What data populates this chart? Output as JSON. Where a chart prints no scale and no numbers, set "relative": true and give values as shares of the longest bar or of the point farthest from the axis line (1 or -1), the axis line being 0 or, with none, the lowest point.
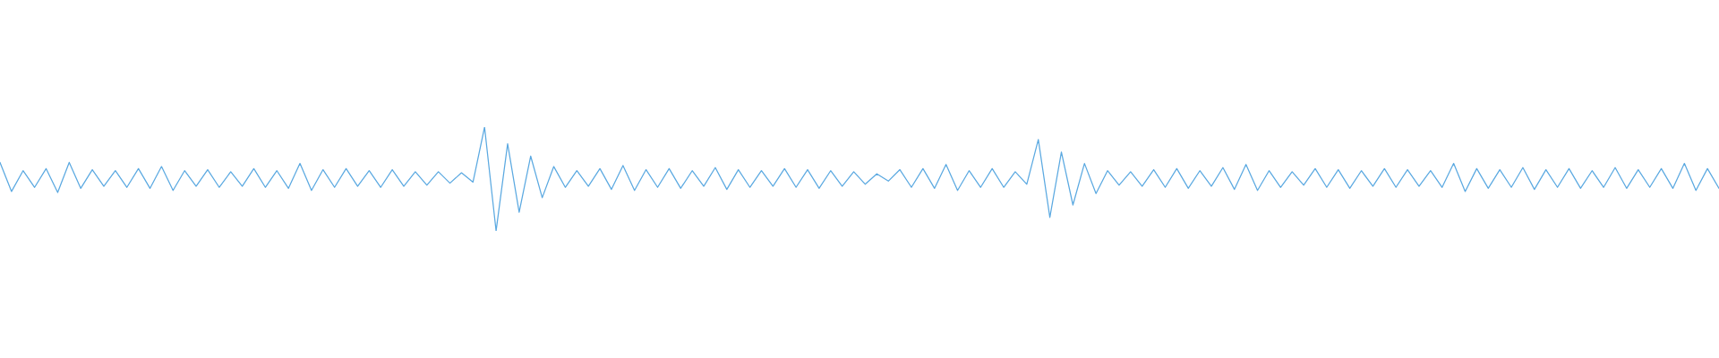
{
  "chart_data": {
    "type": "line",
    "relative": true,
    "categories": [
      null,
      null,
      null,
      null,
      null,
      null,
      null,
      null,
      null,
      null,
      null,
      null,
      null,
      null,
      null,
      null,
      null,
      null,
      null,
      null,
      null,
      null,
      null,
      null,
      null,
      null,
      null,
      null,
      null,
      null,
      null,
      null,
      null,
      null,
      null,
      null,
      null,
      null,
      null,
      null,
      null,
      null,
      null,
      null,
      null,
      null,
      null,
      null,
      null,
      null,
      null,
      null,
      null,
      null,
      null,
      null,
      null,
      null,
      null,
      null,
      null,
      null,
      null,
      null,
      null,
      null,
      null,
      null,
      null,
      null,
      null,
      null,
      null,
      null,
      null,
      null,
      null,
      null,
      null,
      null,
      null,
      null,
      null,
      null,
      null,
      null,
      null,
      null,
      null,
      null,
      null,
      null,
      null,
      null,
      null,
      null,
      null,
      null,
      null,
      null,
      null,
      null,
      null,
      null,
      null,
      null,
      null,
      null,
      null,
      null,
      null,
      null,
      null,
      null,
      null,
      null,
      null,
      null,
      null,
      null,
      null,
      null,
      null,
      null,
      null,
      null,
      null,
      null,
      null,
      null,
      null,
      null,
      null,
      null,
      null,
      null,
      null,
      null,
      null,
      null,
      null,
      null,
      null,
      null,
      null,
      null,
      null,
      null,
      null,
      null
    ],
    "series": [
      {
        "color": "#5ba9e1",
        "values": [
          0.66,
          0.38,
          0.58,
          0.42,
          0.6,
          0.37,
          0.66,
          0.41,
          0.59,
          0.43,
          0.58,
          0.42,
          0.6,
          0.41,
          0.62,
          0.39,
          0.58,
          0.43,
          0.59,
          0.42,
          0.57,
          0.43,
          0.6,
          0.42,
          0.58,
          0.41,
          0.65,
          0.39,
          0.59,
          0.42,
          0.6,
          0.43,
          0.58,
          0.42,
          0.59,
          0.43,
          0.57,
          0.44,
          0.57,
          0.46,
          0.56,
          0.47,
          1,
          0,
          0.84,
          0.18,
          0.72,
          0.32,
          0.62,
          0.42,
          0.58,
          0.43,
          0.6,
          0.4,
          0.63,
          0.39,
          0.59,
          0.42,
          0.6,
          0.41,
          0.58,
          0.43,
          0.61,
          0.4,
          0.59,
          0.42,
          0.58,
          0.43,
          0.6,
          0.42,
          0.59,
          0.41,
          0.58,
          0.43,
          0.57,
          0.45,
          0.55,
          0.48,
          0.59,
          0.42,
          0.6,
          0.41,
          0.64,
          0.39,
          0.58,
          0.42,
          0.6,
          0.42,
          0.57,
          0.45,
          0.88,
          0.13,
          0.76,
          0.25,
          0.65,
          0.36,
          0.58,
          0.44,
          0.57,
          0.43,
          0.59,
          0.42,
          0.6,
          0.41,
          0.58,
          0.43,
          0.61,
          0.4,
          0.64,
          0.39,
          0.58,
          0.42,
          0.57,
          0.44,
          0.6,
          0.42,
          0.59,
          0.41,
          0.58,
          0.43,
          0.6,
          0.42,
          0.59,
          0.43,
          0.58,
          0.42,
          0.65,
          0.38,
          0.6,
          0.41,
          0.59,
          0.42,
          0.61,
          0.4,
          0.59,
          0.42,
          0.6,
          0.41,
          0.58,
          0.42,
          0.61,
          0.41,
          0.59,
          0.42,
          0.6,
          0.41,
          0.65,
          0.39,
          0.6,
          0.41
        ]
      }
    ]
  }
}
